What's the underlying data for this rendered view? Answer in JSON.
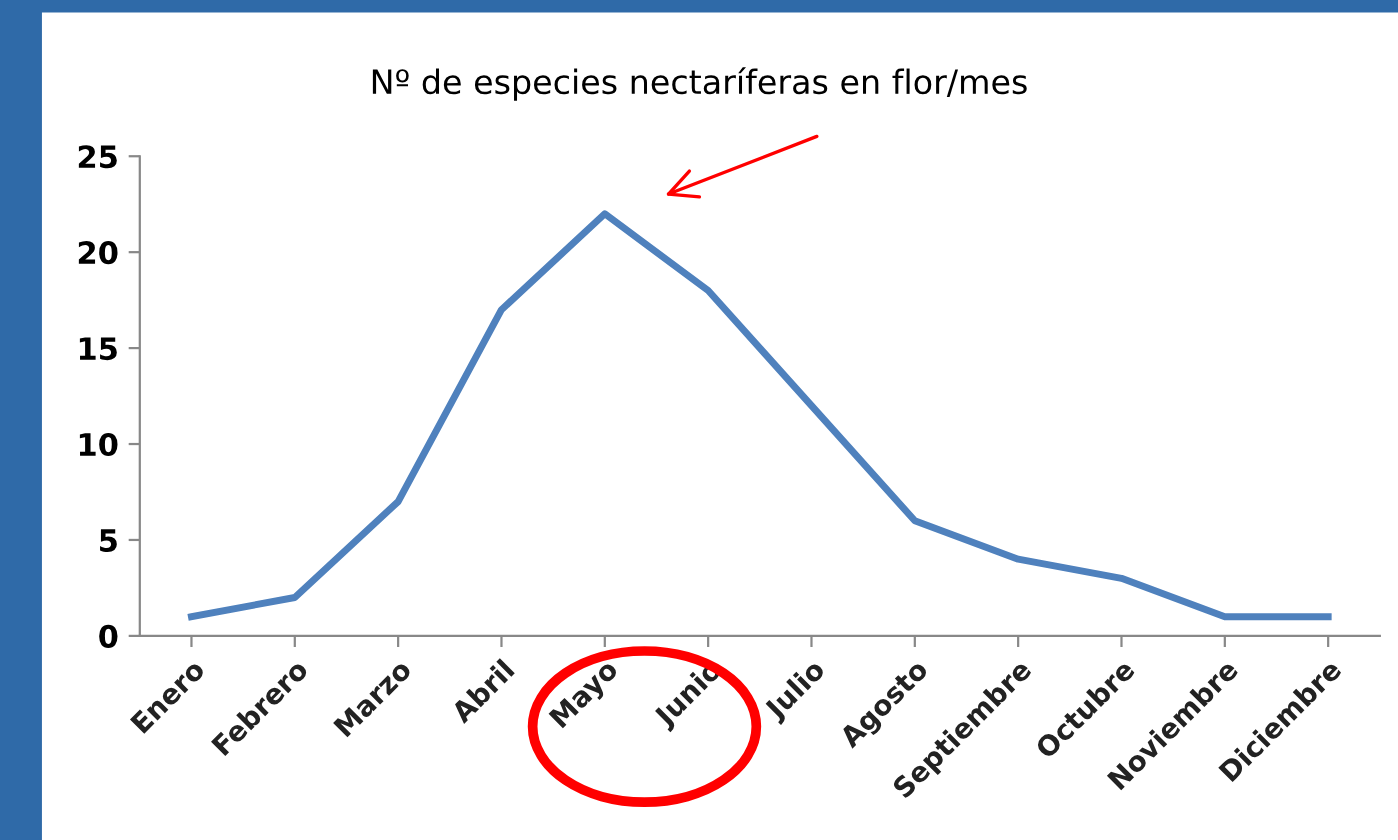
{
  "chart_data": {
    "type": "line",
    "title": "Nº de especies nectaríferas en flor/mes",
    "categories": [
      "Enero",
      "Febrero",
      "Marzo",
      "Abril",
      "Mayo",
      "Junio",
      "Julio",
      "Agosto",
      "Septiembre",
      "Octubre",
      "Noviembre",
      "Diciembre"
    ],
    "series": [
      {
        "color": "#4f81bd",
        "values": [
          1,
          2,
          7,
          17,
          22,
          18,
          12,
          6,
          4,
          3,
          1,
          1
        ]
      }
    ],
    "ylim": [
      0,
      25
    ],
    "yticks": [
      0,
      5,
      10,
      15,
      20,
      25
    ],
    "grid": false,
    "legend": false,
    "marker": "none",
    "line_style": "solid"
  }
}
